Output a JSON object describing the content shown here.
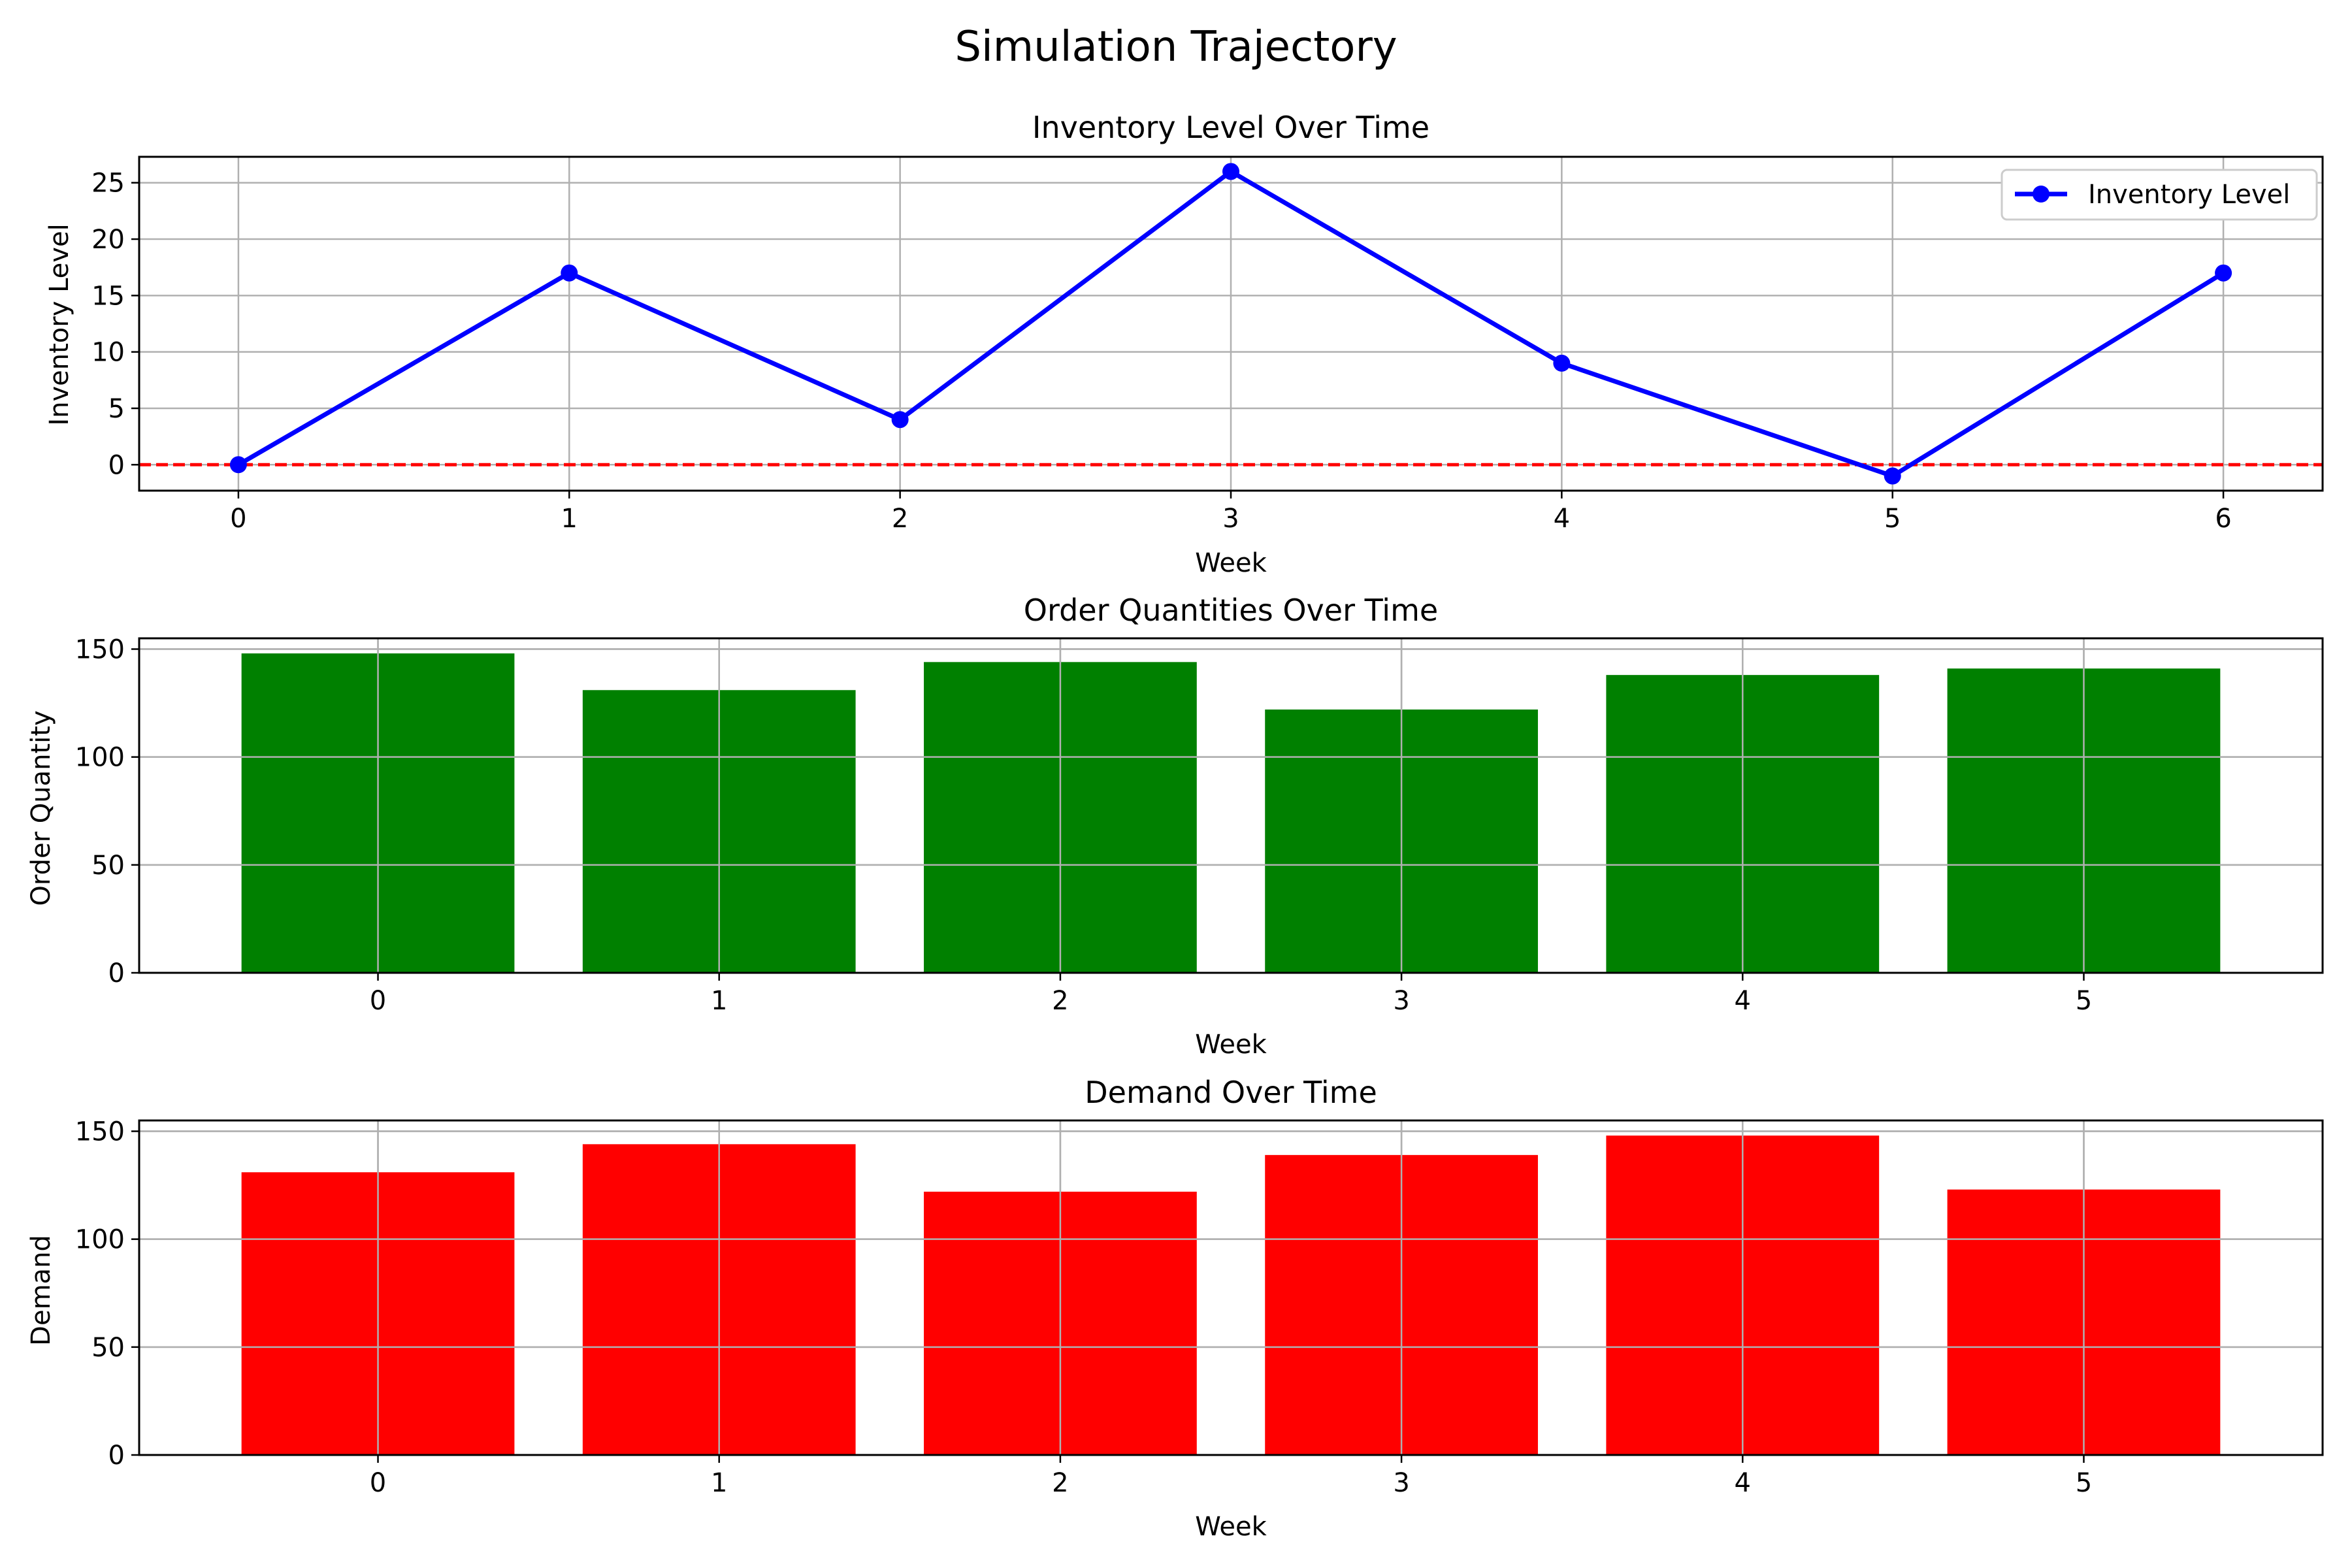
{
  "figure_title": "Simulation Trajectory",
  "colors": {
    "inventory_line": "#0000ff",
    "zero_line": "#ff0000",
    "order_bars": "#008000",
    "demand_bars": "#ff0000",
    "grid": "#b0b0b0",
    "axes": "#000000"
  },
  "chart_data": [
    {
      "type": "line",
      "title": "Inventory Level Over Time",
      "xlabel": "Week",
      "ylabel": "Inventory Level",
      "x": [
        0,
        1,
        2,
        3,
        4,
        5,
        6
      ],
      "xlim": [
        -0.3,
        6.3
      ],
      "ylim": [
        -2.3,
        27.3
      ],
      "xticks": [
        0,
        1,
        2,
        3,
        4,
        5,
        6
      ],
      "yticks": [
        0,
        5,
        10,
        15,
        20,
        25
      ],
      "series": [
        {
          "name": "Inventory Level",
          "values": [
            0,
            17,
            4,
            26,
            9,
            -1,
            17
          ],
          "marker": "circle"
        }
      ],
      "reference_line": {
        "y": 0,
        "style": "dashed"
      },
      "legend": {
        "position": "top-right",
        "entries": [
          "Inventory Level"
        ]
      },
      "grid": true
    },
    {
      "type": "bar",
      "title": "Order Quantities Over Time",
      "xlabel": "Week",
      "ylabel": "Order Quantity",
      "categories": [
        0,
        1,
        2,
        3,
        4,
        5
      ],
      "values": [
        148,
        131,
        144,
        122,
        138,
        141
      ],
      "xlim": [
        -0.7,
        5.7
      ],
      "ylim": [
        0,
        155
      ],
      "yticks": [
        0,
        50,
        100,
        150
      ],
      "grid": true
    },
    {
      "type": "bar",
      "title": "Demand Over Time",
      "xlabel": "Week",
      "ylabel": "Demand",
      "categories": [
        0,
        1,
        2,
        3,
        4,
        5
      ],
      "values": [
        131,
        144,
        122,
        139,
        148,
        123
      ],
      "xlim": [
        -0.7,
        5.7
      ],
      "ylim": [
        0,
        155
      ],
      "yticks": [
        0,
        50,
        100,
        150
      ],
      "grid": true
    }
  ]
}
